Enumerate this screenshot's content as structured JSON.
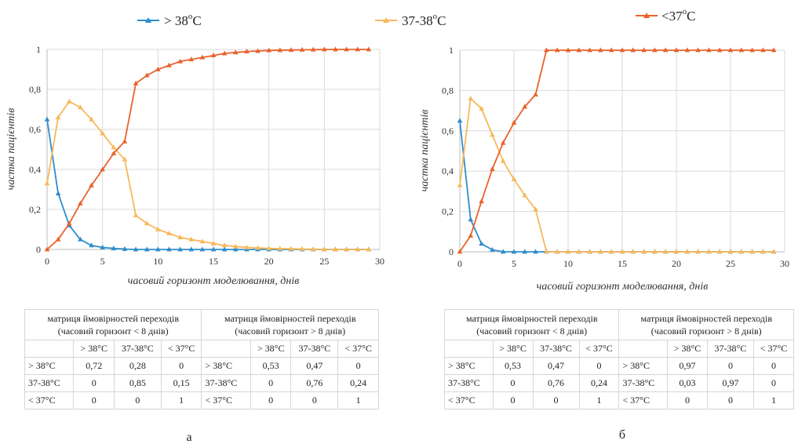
{
  "legend": [
    {
      "name": "> 38",
      "sup": "o",
      "unit": "C",
      "color": "#2e8dcc"
    },
    {
      "name": "37-38",
      "sup": "o",
      "unit": "C",
      "color": "#f7b85a"
    },
    {
      "name": "<37",
      "sup": "o",
      "unit": "C",
      "color": "#e8632d"
    }
  ],
  "chart_data": [
    {
      "type": "line",
      "panel_label": "а",
      "xlabel": "часовий горизонт моделювання, днів",
      "ylabel": "частка пацієнтів",
      "xlim": [
        0,
        30
      ],
      "ylim": [
        0,
        1
      ],
      "x_ticks": [
        "0",
        "5",
        "10",
        "15",
        "20",
        "25",
        "30"
      ],
      "y_ticks": [
        "0",
        "0,2",
        "0,4",
        "0,6",
        "0,8",
        "1"
      ],
      "grid": true,
      "x": [
        0,
        1,
        2,
        3,
        4,
        5,
        6,
        7,
        8,
        9,
        10,
        11,
        12,
        13,
        14,
        15,
        16,
        17,
        18,
        19,
        20,
        21,
        22,
        23,
        24,
        25,
        26,
        27,
        28,
        29
      ],
      "series": [
        {
          "name": "> 38oC",
          "color": "#2e8dcc",
          "values": [
            0.65,
            0.28,
            0.12,
            0.05,
            0.02,
            0.01,
            0.005,
            0.002,
            0,
            0,
            0,
            0,
            0,
            0,
            0,
            0,
            0,
            0,
            0,
            0,
            0,
            0,
            0,
            0,
            0,
            0,
            0,
            0,
            0,
            0
          ]
        },
        {
          "name": "37-38oC",
          "color": "#f7b85a",
          "values": [
            0.33,
            0.66,
            0.74,
            0.71,
            0.65,
            0.58,
            0.51,
            0.45,
            0.17,
            0.13,
            0.1,
            0.08,
            0.06,
            0.05,
            0.04,
            0.03,
            0.02,
            0.015,
            0.01,
            0.008,
            0.005,
            0.004,
            0.003,
            0.002,
            0.001,
            0,
            0,
            0,
            0,
            0
          ]
        },
        {
          "name": "<37oC",
          "color": "#e8632d",
          "values": [
            0,
            0.05,
            0.13,
            0.23,
            0.32,
            0.4,
            0.48,
            0.54,
            0.83,
            0.87,
            0.9,
            0.92,
            0.94,
            0.95,
            0.96,
            0.97,
            0.98,
            0.985,
            0.99,
            0.992,
            0.995,
            0.996,
            0.997,
            0.998,
            0.999,
            1,
            1,
            1,
            1,
            1
          ]
        }
      ]
    },
    {
      "type": "line",
      "panel_label": "б",
      "xlabel": "часовий горизонт моделювання, днів",
      "ylabel": "частка пацієнтів",
      "xlim": [
        0,
        30
      ],
      "ylim": [
        0,
        1
      ],
      "x_ticks": [
        "0",
        "5",
        "10",
        "15",
        "20",
        "25",
        "30"
      ],
      "y_ticks": [
        "0",
        "0,2",
        "0,4",
        "0,6",
        "0,8",
        "1"
      ],
      "grid": true,
      "x": [
        0,
        1,
        2,
        3,
        4,
        5,
        6,
        7,
        8,
        9,
        10,
        11,
        12,
        13,
        14,
        15,
        16,
        17,
        18,
        19,
        20,
        21,
        22,
        23,
        24,
        25,
        26,
        27,
        28,
        29
      ],
      "series": [
        {
          "name": "> 38oC",
          "color": "#2e8dcc",
          "values": [
            0.65,
            0.16,
            0.04,
            0.01,
            0,
            0,
            0,
            0,
            0,
            0,
            0,
            0,
            0,
            0,
            0,
            0,
            0,
            0,
            0,
            0,
            0,
            0,
            0,
            0,
            0,
            0,
            0,
            0,
            0,
            0
          ]
        },
        {
          "name": "37-38oC",
          "color": "#f7b85a",
          "values": [
            0.33,
            0.76,
            0.71,
            0.58,
            0.45,
            0.36,
            0.28,
            0.21,
            0,
            0,
            0,
            0,
            0,
            0,
            0,
            0,
            0,
            0,
            0,
            0,
            0,
            0,
            0,
            0,
            0,
            0,
            0,
            0,
            0,
            0
          ]
        },
        {
          "name": "<37oC",
          "color": "#e8632d",
          "values": [
            0,
            0.08,
            0.25,
            0.41,
            0.54,
            0.64,
            0.72,
            0.78,
            1,
            1,
            1,
            1,
            1,
            1,
            1,
            1,
            1,
            1,
            1,
            1,
            1,
            1,
            1,
            1,
            1,
            1,
            1,
            1,
            1,
            1
          ]
        }
      ]
    }
  ],
  "tables": [
    {
      "title1": "матриця ймовірностей переходів",
      "sub1": "(часовий горизонт < 8 днів)",
      "title2": "матриця ймовірностей переходів",
      "sub2": "(часовий горизонт > 8 днів)",
      "cols": [
        "> 38°C",
        "37-38°C",
        "< 37°C"
      ],
      "rows": [
        {
          "label": "> 38°C",
          "m1": [
            "0,72",
            "0,28",
            "0"
          ],
          "m2": [
            "0,53",
            "0,47",
            "0"
          ]
        },
        {
          "label": "37-38°C",
          "m1": [
            "0",
            "0,85",
            "0,15"
          ],
          "m2": [
            "0",
            "0,76",
            "0,24"
          ]
        },
        {
          "label": "< 37°C",
          "m1": [
            "0",
            "0",
            "1"
          ],
          "m2": [
            "0",
            "0",
            "1"
          ]
        }
      ]
    },
    {
      "title1": "матриця ймовірностей переходів",
      "sub1": "(часовий горизонт < 8 днів)",
      "title2": "матриця ймовірностей переходів",
      "sub2": "(часовий горизонт > 8 днів)",
      "cols": [
        "> 38°C",
        "37-38°C",
        "< 37°C"
      ],
      "rows": [
        {
          "label": "> 38°C",
          "m1": [
            "0,53",
            "0,47",
            "0"
          ],
          "m2": [
            "0,97",
            "0",
            "0"
          ]
        },
        {
          "label": "37-38°C",
          "m1": [
            "0",
            "0,76",
            "0,24"
          ],
          "m2": [
            "0,03",
            "0,97",
            "0"
          ]
        },
        {
          "label": "< 37°C",
          "m1": [
            "0",
            "0",
            "1"
          ],
          "m2": [
            "0",
            "0",
            "1"
          ]
        }
      ]
    }
  ]
}
